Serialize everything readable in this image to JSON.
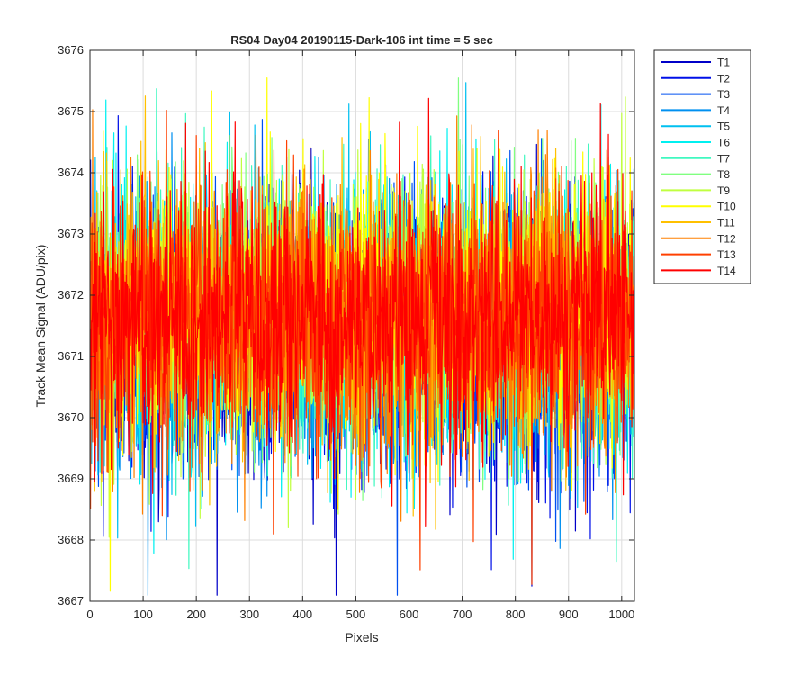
{
  "chart_data": {
    "type": "line",
    "title": "RS04 Day04 20190115-Dark-106 int time = 5 sec",
    "xlabel": "Pixels",
    "ylabel": "Track Mean Signal (ADU/pix)",
    "xlim": [
      0,
      1024
    ],
    "ylim": [
      3667,
      3676
    ],
    "xticks": [
      0,
      100,
      200,
      300,
      400,
      500,
      600,
      700,
      800,
      900,
      1000
    ],
    "yticks": [
      3667,
      3668,
      3669,
      3670,
      3671,
      3672,
      3673,
      3674,
      3675,
      3676
    ],
    "grid": true,
    "legend_position": "outside-top-right",
    "num_points": 1024,
    "series_profile": {
      "mean": 3671.6,
      "spread_sd": 1.05,
      "spike_probability": 0.01
    },
    "series": [
      {
        "name": "T1",
        "color": "#0000C8",
        "mean": 3671.3
      },
      {
        "name": "T2",
        "color": "#0010E8",
        "mean": 3671.3
      },
      {
        "name": "T3",
        "color": "#0050F0",
        "mean": 3671.35
      },
      {
        "name": "T4",
        "color": "#0090F0",
        "mean": 3671.4
      },
      {
        "name": "T5",
        "color": "#00C0F0",
        "mean": 3671.45
      },
      {
        "name": "T6",
        "color": "#00F0F0",
        "mean": 3671.5
      },
      {
        "name": "T7",
        "color": "#40F8C0",
        "mean": 3671.6
      },
      {
        "name": "T8",
        "color": "#80FF80",
        "mean": 3671.7
      },
      {
        "name": "T9",
        "color": "#C0FF40",
        "mean": 3671.8
      },
      {
        "name": "T10",
        "color": "#FFFF00",
        "mean": 3671.85
      },
      {
        "name": "T11",
        "color": "#FFC000",
        "mean": 3671.7
      },
      {
        "name": "T12",
        "color": "#FF8000",
        "mean": 3671.6
      },
      {
        "name": "T13",
        "color": "#FF4000",
        "mean": 3671.6
      },
      {
        "name": "T14",
        "color": "#FF0000",
        "mean": 3671.6
      }
    ]
  }
}
